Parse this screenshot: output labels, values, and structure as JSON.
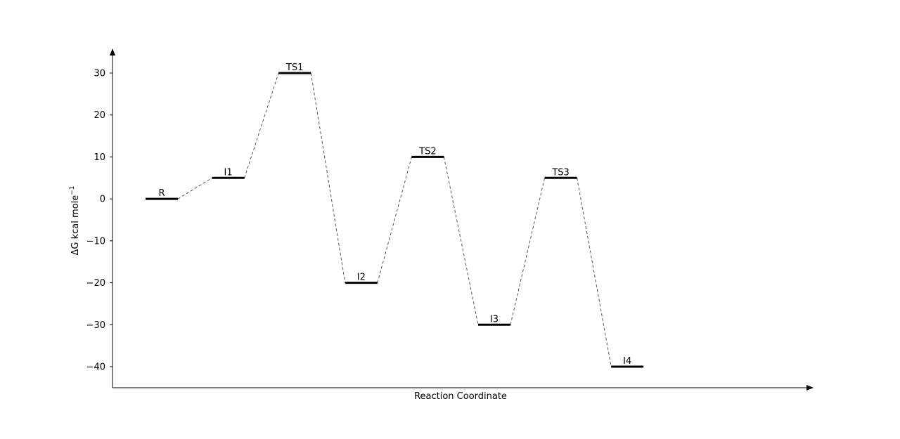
{
  "chart_data": {
    "type": "energy-diagram",
    "xlabel": "Reaction Coordinate",
    "ylabel": "ΔG kcal mole",
    "ylabel_sup": "−1",
    "ylim": [
      -45,
      35
    ],
    "yticks": [
      -40,
      -30,
      -20,
      -10,
      0,
      10,
      20,
      30
    ],
    "ytick_labels": [
      "−40",
      "−30",
      "−20",
      "−10",
      "0",
      "10",
      "20",
      "30"
    ],
    "grid": false,
    "legend": "none",
    "states": [
      {
        "label": "R",
        "value": 0
      },
      {
        "label": "I1",
        "value": 5
      },
      {
        "label": "TS1",
        "value": 30
      },
      {
        "label": "I2",
        "value": -20
      },
      {
        "label": "TS2",
        "value": 10
      },
      {
        "label": "I3",
        "value": -30
      },
      {
        "label": "TS3",
        "value": 5
      },
      {
        "label": "I4",
        "value": -40
      }
    ],
    "colors": {
      "level": "#000000",
      "connector": "#555555",
      "axis": "#000000"
    }
  }
}
